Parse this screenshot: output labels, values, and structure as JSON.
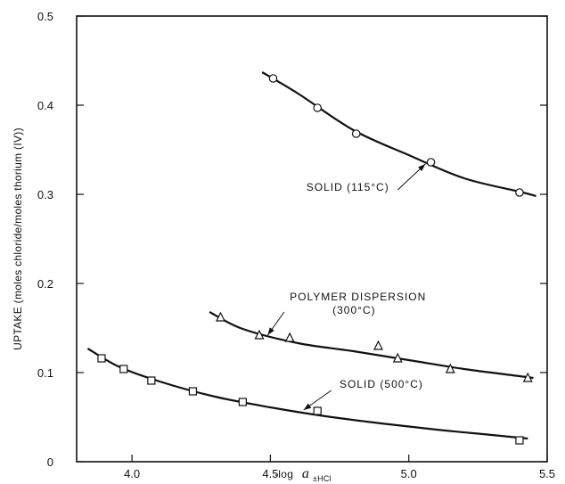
{
  "chart_data": {
    "type": "scatter",
    "xlabel": "-log a±HCl",
    "ylabel": "UPTAKE (moles chloride/moles thorium (IV))",
    "xlim": [
      3.8,
      5.5
    ],
    "ylim": [
      0,
      0.5
    ],
    "xticks": [
      "4.0",
      "4.5",
      "5.0",
      "5.5"
    ],
    "yticks": [
      "0",
      "0.1",
      "0.2",
      "0.3",
      "0.4",
      "0.5"
    ],
    "xlabel_parts": {
      "prefix": "-log",
      "var": "a",
      "sub": "±HCl"
    },
    "grid": false,
    "series": [
      {
        "name": "SOLID (115°C)",
        "marker": "circle",
        "points": [
          [
            4.51,
            0.43
          ],
          [
            4.67,
            0.397
          ],
          [
            4.81,
            0.368
          ],
          [
            5.08,
            0.336
          ],
          [
            5.4,
            0.302
          ]
        ],
        "curve": [
          [
            4.47,
            0.437
          ],
          [
            4.6,
            0.413
          ],
          [
            4.8,
            0.372
          ],
          [
            5.0,
            0.344
          ],
          [
            5.2,
            0.318
          ],
          [
            5.4,
            0.303
          ],
          [
            5.46,
            0.298
          ]
        ]
      },
      {
        "name": "POLYMER DISPERSION (300°C)",
        "marker": "triangle",
        "points": [
          [
            4.32,
            0.162
          ],
          [
            4.46,
            0.142
          ],
          [
            4.57,
            0.139
          ],
          [
            4.89,
            0.13
          ],
          [
            4.96,
            0.116
          ],
          [
            5.15,
            0.104
          ],
          [
            5.43,
            0.094
          ]
        ],
        "curve": [
          [
            4.28,
            0.168
          ],
          [
            4.4,
            0.149
          ],
          [
            4.6,
            0.133
          ],
          [
            4.8,
            0.124
          ],
          [
            5.0,
            0.114
          ],
          [
            5.2,
            0.104
          ],
          [
            5.4,
            0.096
          ],
          [
            5.45,
            0.094
          ]
        ]
      },
      {
        "name": "SOLID (500°C)",
        "marker": "square",
        "points": [
          [
            3.89,
            0.116
          ],
          [
            3.97,
            0.104
          ],
          [
            4.07,
            0.091
          ],
          [
            4.22,
            0.079
          ],
          [
            4.4,
            0.067
          ],
          [
            4.67,
            0.057
          ],
          [
            5.4,
            0.024
          ]
        ],
        "curve": [
          [
            3.84,
            0.127
          ],
          [
            3.95,
            0.107
          ],
          [
            4.1,
            0.09
          ],
          [
            4.3,
            0.073
          ],
          [
            4.5,
            0.061
          ],
          [
            4.7,
            0.051
          ],
          [
            4.9,
            0.043
          ],
          [
            5.1,
            0.036
          ],
          [
            5.3,
            0.03
          ],
          [
            5.43,
            0.026
          ]
        ]
      }
    ],
    "annotations": [
      {
        "lines": [
          "SOLID (115°C)"
        ],
        "series": 0,
        "arrow_from": [
          4.96,
          0.305
        ],
        "arrow_to": [
          5.06,
          0.334
        ],
        "text_at": [
          4.63,
          0.304
        ]
      },
      {
        "lines": [
          "POLYMER DISPERSION",
          "(300°C)"
        ],
        "series": 1,
        "arrow_from": [
          4.55,
          0.168
        ],
        "arrow_to": [
          4.49,
          0.142
        ],
        "text_at": [
          4.57,
          0.181
        ]
      },
      {
        "lines": [
          "SOLID (500°C)"
        ],
        "series": 2,
        "arrow_from": [
          4.72,
          0.08
        ],
        "arrow_to": [
          4.62,
          0.058
        ],
        "text_at": [
          4.75,
          0.083
        ]
      }
    ]
  }
}
